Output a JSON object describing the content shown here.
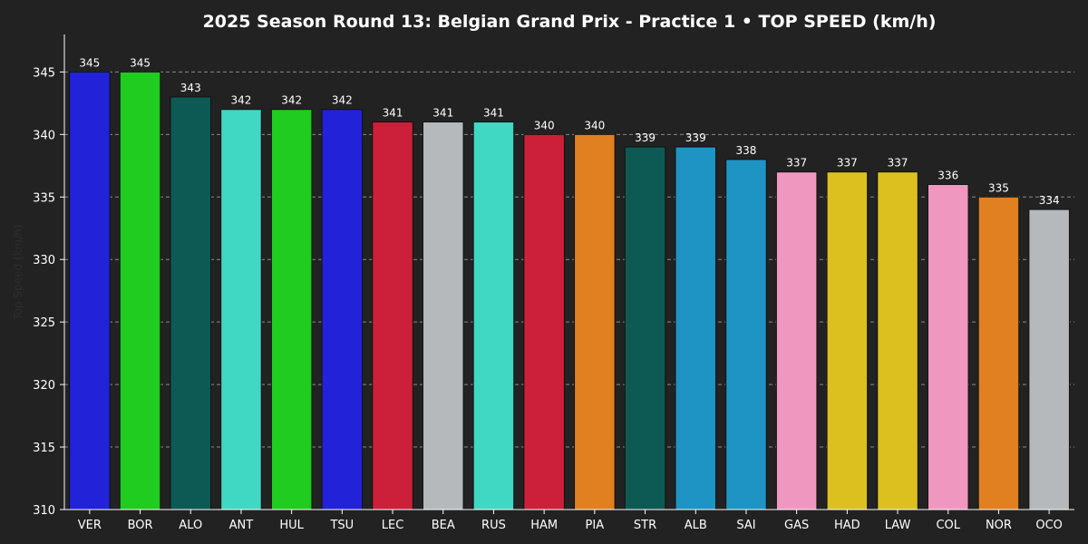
{
  "chart_data": {
    "type": "bar",
    "title": "2025 Season Round 13: Belgian Grand Prix - Practice 1  •  TOP SPEED (km/h)",
    "xlabel": "",
    "ylabel": "Top Speed (km/h)",
    "ylim": [
      310,
      348
    ],
    "yticks": [
      310,
      315,
      320,
      325,
      330,
      335,
      340,
      345
    ],
    "grid": true,
    "categories": [
      "VER",
      "BOR",
      "ALO",
      "ANT",
      "HUL",
      "TSU",
      "LEC",
      "BEA",
      "RUS",
      "HAM",
      "PIA",
      "STR",
      "ALB",
      "SAI",
      "GAS",
      "HAD",
      "LAW",
      "COL",
      "NOR",
      "OCO"
    ],
    "values": [
      345,
      345,
      343,
      342,
      342,
      342,
      341,
      341,
      341,
      340,
      340,
      339,
      339,
      338,
      337,
      337,
      337,
      336,
      335,
      334
    ],
    "value_labels": [
      "345",
      "345",
      "343",
      "342",
      "342",
      "342",
      "341",
      "341",
      "341",
      "340",
      "340",
      "339",
      "339",
      "338",
      "337",
      "337",
      "337",
      "336",
      "335",
      "334"
    ],
    "colors": [
      "#2222d9",
      "#1fcc1f",
      "#0d5a54",
      "#40d8c2",
      "#1fcc1f",
      "#2222d9",
      "#cc1f3a",
      "#b6b9bb",
      "#40d8c2",
      "#cc1f3a",
      "#e08020",
      "#0d5a54",
      "#1e94c4",
      "#1e94c4",
      "#f097c0",
      "#dcc020",
      "#dcc020",
      "#f097c0",
      "#e08020",
      "#b6b9bb"
    ]
  }
}
